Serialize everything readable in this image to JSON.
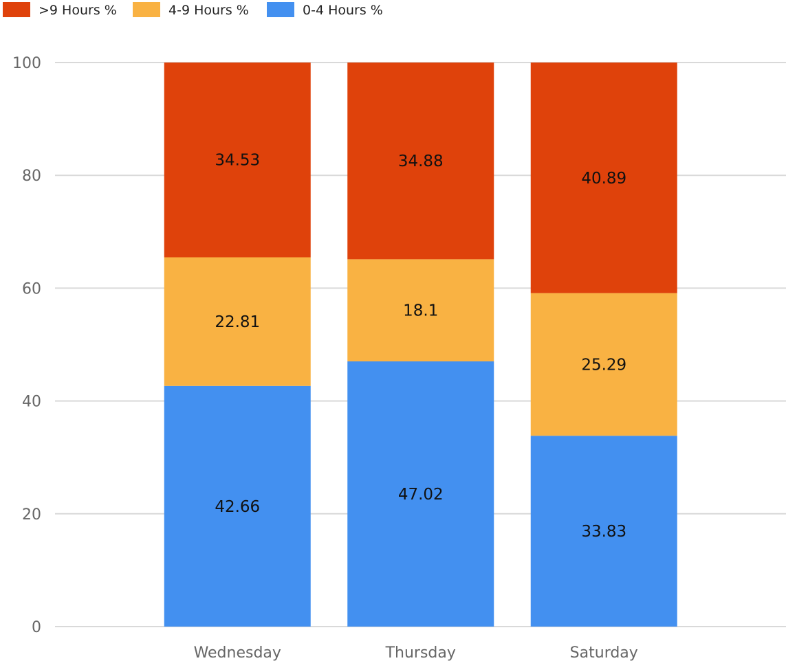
{
  "chart_data": {
    "type": "bar",
    "stacked": true,
    "categories": [
      "Wednesday",
      "Thursday",
      "Saturday"
    ],
    "series": [
      {
        "name": "0-4 Hours %",
        "color": "#4390f0",
        "values": [
          42.66,
          47.02,
          33.83
        ]
      },
      {
        "name": "4-9 Hours %",
        "color": "#f9b243",
        "values": [
          22.81,
          18.1,
          25.29
        ]
      },
      {
        "name": ">9 Hours %",
        "color": "#df420b",
        "values": [
          34.53,
          34.88,
          40.89
        ]
      }
    ],
    "legend_order": [
      2,
      1,
      0
    ],
    "title": "",
    "xlabel": "",
    "ylabel": "",
    "ylim": [
      0,
      100
    ],
    "yticks": [
      0,
      20,
      40,
      60,
      80,
      100
    ],
    "grid": true,
    "legend_position": "top-left"
  }
}
